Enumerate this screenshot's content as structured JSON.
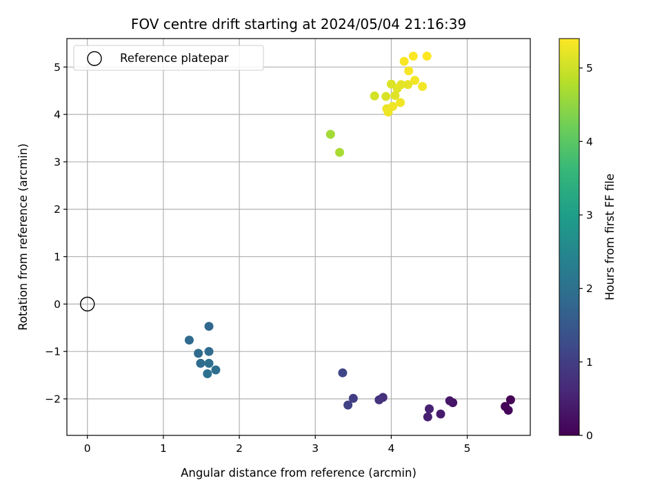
{
  "chart_data": {
    "type": "scatter",
    "title": "FOV centre drift starting at 2024/05/04 21:16:39",
    "xlabel": "Angular distance from reference (arcmin)",
    "ylabel": "Rotation from reference (arcmin)",
    "xlim": [
      -0.27,
      5.83
    ],
    "ylim": [
      -2.77,
      5.6
    ],
    "xticks": [
      0,
      1,
      2,
      3,
      4,
      5
    ],
    "yticks": [
      -2,
      -1,
      0,
      1,
      2,
      3,
      4,
      5
    ],
    "grid": true,
    "legend": {
      "placement": "top-left",
      "entries": [
        {
          "label": "Reference platepar",
          "marker": "open-circle"
        }
      ]
    },
    "reference_point": {
      "x": 0,
      "y": 0
    },
    "colorbar": {
      "label": "Hours from first FF file",
      "range": [
        0,
        5.4
      ],
      "ticks": [
        0,
        1,
        2,
        3,
        4,
        5
      ],
      "colormap": [
        "#440154",
        "#482878",
        "#3e4989",
        "#31688e",
        "#26828e",
        "#1f9e89",
        "#35b779",
        "#6ece58",
        "#b5de2b",
        "#fde725"
      ]
    },
    "points": [
      {
        "x": 5.57,
        "y": -2.02,
        "hours": 0.02
      },
      {
        "x": 5.5,
        "y": -2.16,
        "hours": 0.05
      },
      {
        "x": 5.54,
        "y": -2.24,
        "hours": 0.08
      },
      {
        "x": 4.81,
        "y": -2.08,
        "hours": 0.3
      },
      {
        "x": 4.77,
        "y": -2.04,
        "hours": 0.33
      },
      {
        "x": 4.65,
        "y": -2.32,
        "hours": 0.4
      },
      {
        "x": 4.48,
        "y": -2.38,
        "hours": 0.48
      },
      {
        "x": 4.5,
        "y": -2.21,
        "hours": 0.5
      },
      {
        "x": 3.89,
        "y": -1.97,
        "hours": 0.75
      },
      {
        "x": 3.84,
        "y": -2.02,
        "hours": 0.8
      },
      {
        "x": 3.5,
        "y": -1.99,
        "hours": 1.0
      },
      {
        "x": 3.43,
        "y": -2.13,
        "hours": 1.05
      },
      {
        "x": 3.36,
        "y": -1.45,
        "hours": 1.15
      },
      {
        "x": 1.6,
        "y": -0.47,
        "hours": 1.8
      },
      {
        "x": 1.34,
        "y": -0.76,
        "hours": 1.85
      },
      {
        "x": 1.46,
        "y": -1.04,
        "hours": 1.88
      },
      {
        "x": 1.6,
        "y": -1.0,
        "hours": 1.9
      },
      {
        "x": 1.49,
        "y": -1.25,
        "hours": 1.92
      },
      {
        "x": 1.6,
        "y": -1.25,
        "hours": 1.95
      },
      {
        "x": 1.69,
        "y": -1.39,
        "hours": 1.97
      },
      {
        "x": 1.58,
        "y": -1.47,
        "hours": 2.0
      },
      {
        "x": 3.2,
        "y": 3.58,
        "hours": 4.65
      },
      {
        "x": 3.32,
        "y": 3.2,
        "hours": 4.7
      },
      {
        "x": 3.78,
        "y": 4.39,
        "hours": 5.05
      },
      {
        "x": 3.93,
        "y": 4.38,
        "hours": 5.1
      },
      {
        "x": 4.0,
        "y": 4.64,
        "hours": 5.12
      },
      {
        "x": 4.05,
        "y": 4.4,
        "hours": 5.15
      },
      {
        "x": 4.08,
        "y": 4.55,
        "hours": 5.17
      },
      {
        "x": 4.13,
        "y": 4.63,
        "hours": 5.2
      },
      {
        "x": 4.22,
        "y": 4.63,
        "hours": 5.22
      },
      {
        "x": 3.94,
        "y": 4.12,
        "hours": 5.25
      },
      {
        "x": 3.96,
        "y": 4.05,
        "hours": 5.27
      },
      {
        "x": 4.02,
        "y": 4.17,
        "hours": 5.28
      },
      {
        "x": 4.12,
        "y": 4.25,
        "hours": 5.3
      },
      {
        "x": 4.31,
        "y": 4.72,
        "hours": 5.3
      },
      {
        "x": 4.41,
        "y": 4.59,
        "hours": 5.32
      },
      {
        "x": 4.23,
        "y": 4.92,
        "hours": 5.34
      },
      {
        "x": 4.17,
        "y": 5.12,
        "hours": 5.36
      },
      {
        "x": 4.29,
        "y": 5.23,
        "hours": 5.38
      },
      {
        "x": 4.47,
        "y": 5.23,
        "hours": 5.4
      }
    ]
  }
}
